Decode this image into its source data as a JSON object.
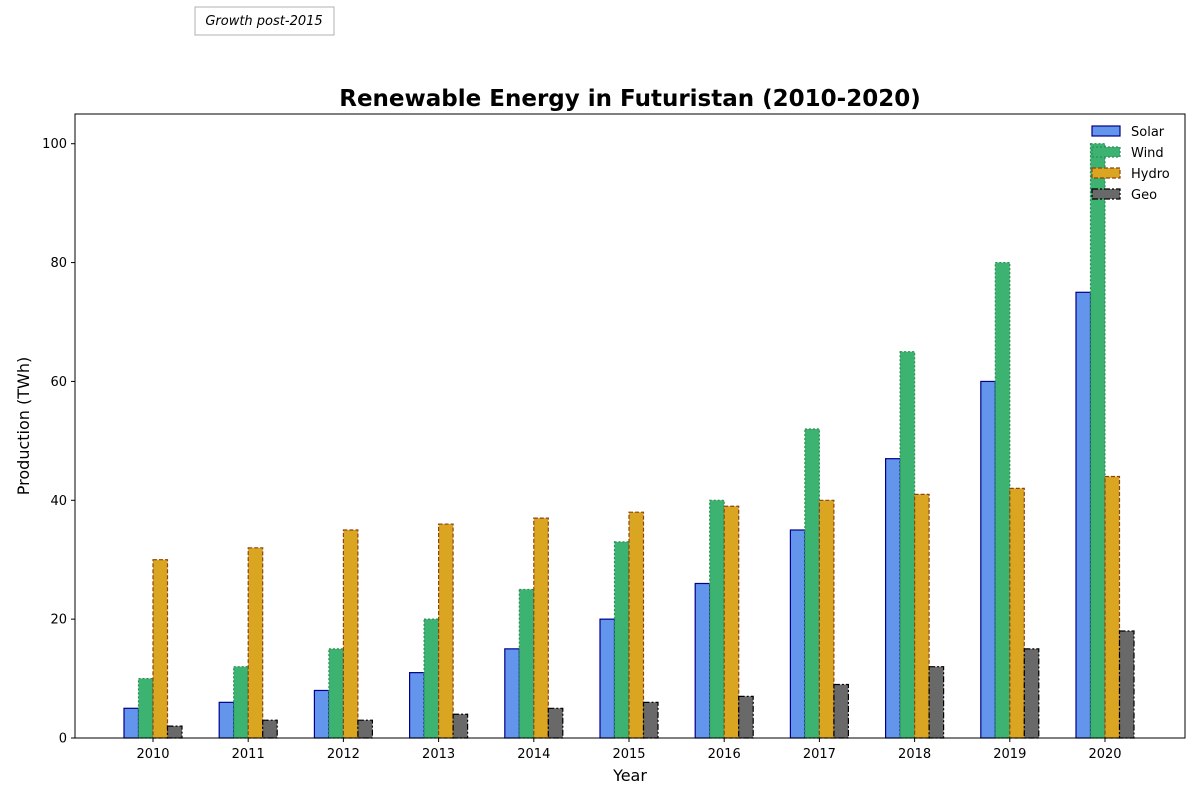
{
  "annotation": "Growth post-2015",
  "chart_data": {
    "type": "bar",
    "title": "Renewable Energy in Futuristan (2010-2020)",
    "xlabel": "Year",
    "ylabel": "Production (TWh)",
    "ylim": [
      0,
      105
    ],
    "yticks": [
      0,
      20,
      40,
      60,
      80,
      100
    ],
    "categories": [
      "2010",
      "2011",
      "2012",
      "2013",
      "2014",
      "2015",
      "2016",
      "2017",
      "2018",
      "2019",
      "2020"
    ],
    "legend_position": "top-right",
    "grid": false,
    "series": [
      {
        "name": "Solar",
        "values": [
          5,
          6,
          8,
          11,
          15,
          20,
          26,
          35,
          47,
          60,
          75
        ],
        "color": "#6495ED",
        "edge": "#00008B",
        "style": "solid"
      },
      {
        "name": "Wind",
        "values": [
          10,
          12,
          15,
          20,
          25,
          33,
          40,
          52,
          65,
          80,
          100
        ],
        "color": "#3CB371",
        "edge": "#2E8B57",
        "style": "dotted"
      },
      {
        "name": "Hydro",
        "values": [
          30,
          32,
          35,
          36,
          37,
          38,
          39,
          40,
          41,
          42,
          44
        ],
        "color": "#DAA520",
        "edge": "#8B4513",
        "style": "dashed"
      },
      {
        "name": "Geo",
        "values": [
          2,
          3,
          3,
          4,
          5,
          6,
          7,
          9,
          12,
          15,
          18
        ],
        "color": "#696969",
        "edge": "#000000",
        "style": "dashdot"
      }
    ]
  }
}
